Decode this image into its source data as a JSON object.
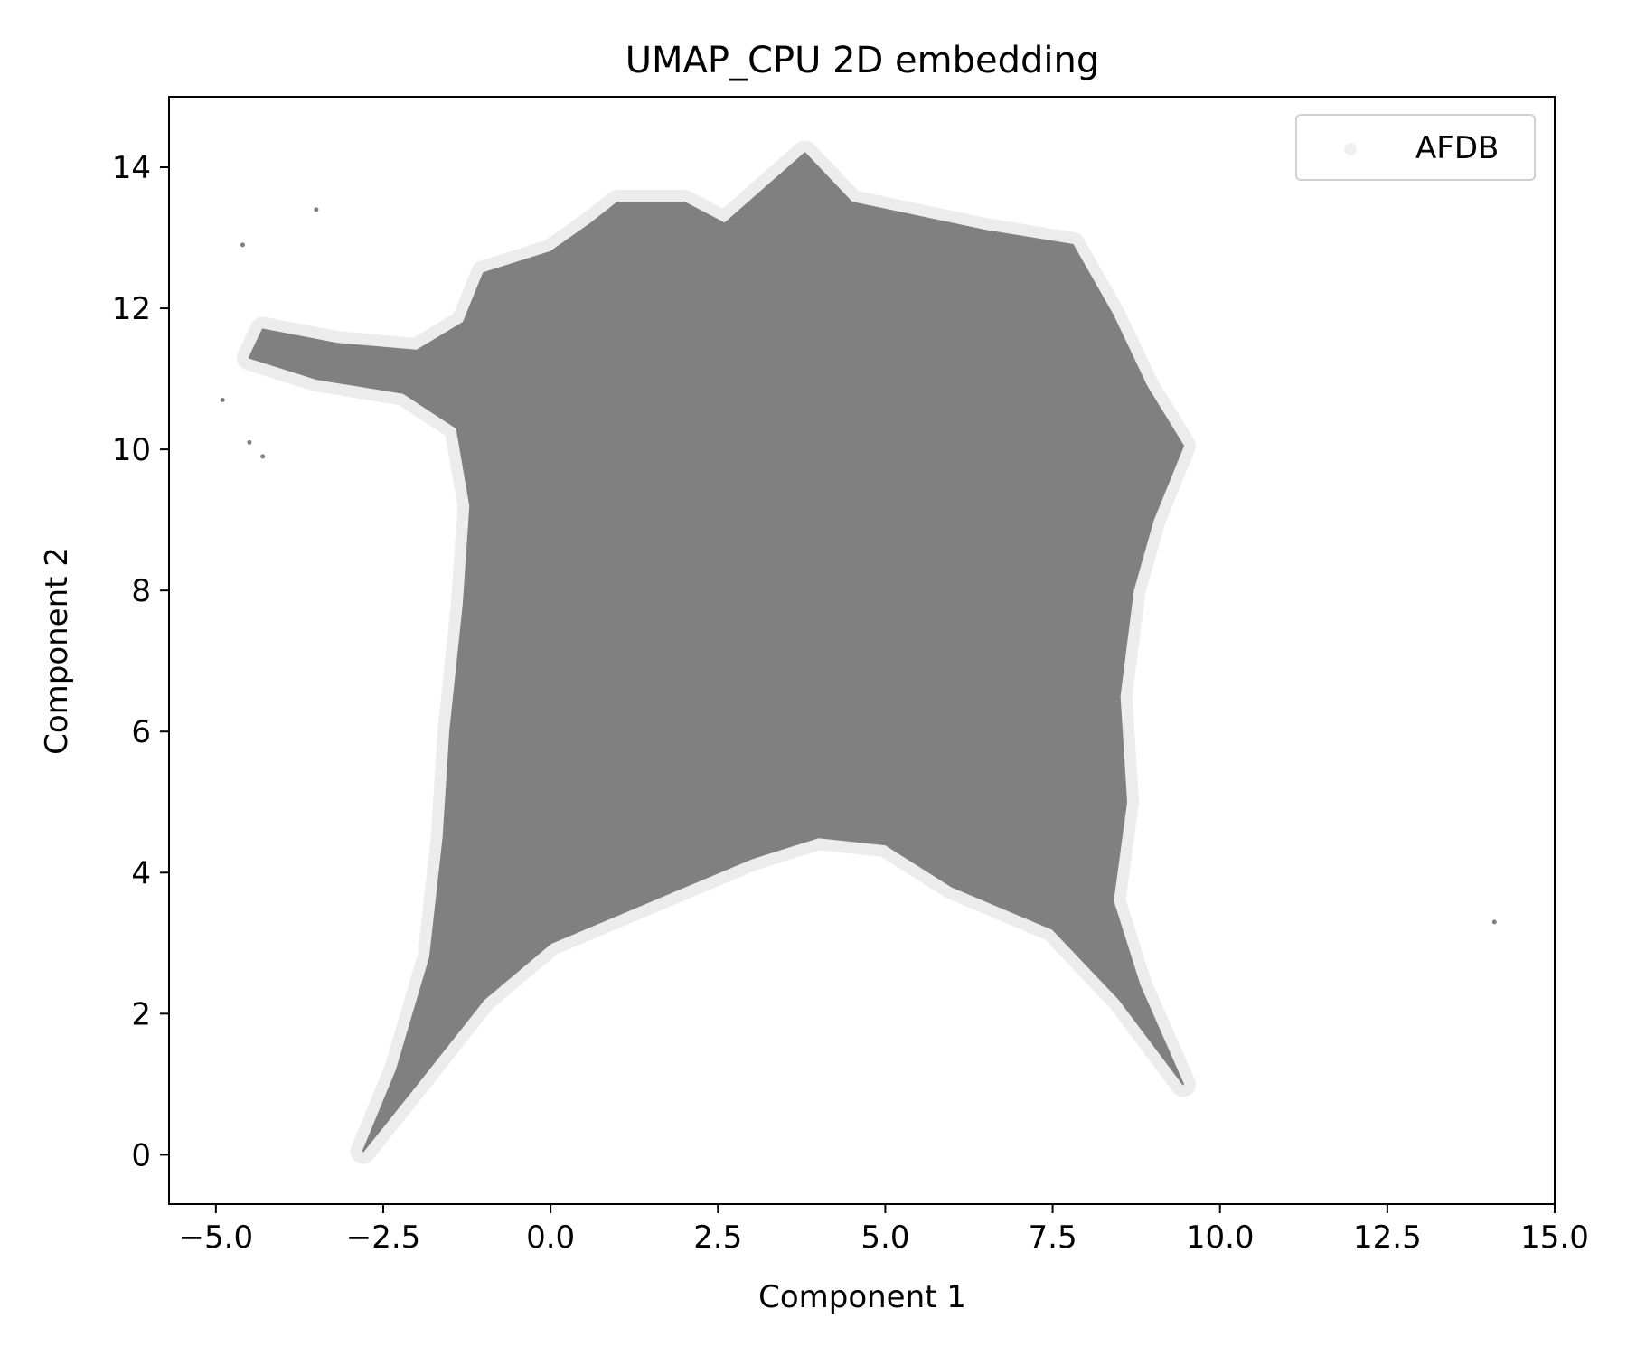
{
  "chart_data": {
    "type": "scatter",
    "title": "UMAP_CPU 2D embedding",
    "xlabel": "Component 1",
    "ylabel": "Component 2",
    "xlim": [
      -5.7,
      15.0
    ],
    "ylim": [
      -0.7,
      15.0
    ],
    "xticks": [
      -5.0,
      -2.5,
      0.0,
      2.5,
      5.0,
      7.5,
      10.0,
      12.5,
      15.0
    ],
    "xtick_labels": [
      "−5.0",
      "−2.5",
      "0.0",
      "2.5",
      "5.0",
      "7.5",
      "10.0",
      "12.5",
      "15.0"
    ],
    "yticks": [
      0,
      2,
      4,
      6,
      8,
      10,
      12,
      14
    ],
    "ytick_labels": [
      "0",
      "2",
      "4",
      "6",
      "8",
      "10",
      "12",
      "14"
    ],
    "grid": false,
    "legend_position": "top-right",
    "series": [
      {
        "name": "AFDB",
        "color": "#808080",
        "region_outline": [
          [
            -2.8,
            0.05
          ],
          [
            -2.3,
            1.2
          ],
          [
            -1.8,
            2.8
          ],
          [
            -1.6,
            4.5
          ],
          [
            -1.5,
            6.0
          ],
          [
            -1.3,
            7.8
          ],
          [
            -1.2,
            9.2
          ],
          [
            -1.4,
            10.3
          ],
          [
            -2.2,
            10.8
          ],
          [
            -3.5,
            11.0
          ],
          [
            -4.5,
            11.3
          ],
          [
            -4.3,
            11.7
          ],
          [
            -3.2,
            11.5
          ],
          [
            -2.0,
            11.4
          ],
          [
            -1.3,
            11.8
          ],
          [
            -1.0,
            12.5
          ],
          [
            0.0,
            12.8
          ],
          [
            0.6,
            13.2
          ],
          [
            1.0,
            13.5
          ],
          [
            2.0,
            13.5
          ],
          [
            2.6,
            13.2
          ],
          [
            3.2,
            13.7
          ],
          [
            3.8,
            14.2
          ],
          [
            4.5,
            13.5
          ],
          [
            5.5,
            13.3
          ],
          [
            6.5,
            13.1
          ],
          [
            7.8,
            12.9
          ],
          [
            8.4,
            11.9
          ],
          [
            8.9,
            10.9
          ],
          [
            9.45,
            10.05
          ],
          [
            9.0,
            9.0
          ],
          [
            8.7,
            8.0
          ],
          [
            8.5,
            6.5
          ],
          [
            8.6,
            5.0
          ],
          [
            8.4,
            3.6
          ],
          [
            8.8,
            2.4
          ],
          [
            9.45,
            1.0
          ],
          [
            8.5,
            2.2
          ],
          [
            7.5,
            3.2
          ],
          [
            6.0,
            3.8
          ],
          [
            5.0,
            4.4
          ],
          [
            4.0,
            4.5
          ],
          [
            3.0,
            4.2
          ],
          [
            2.0,
            3.8
          ],
          [
            1.0,
            3.4
          ],
          [
            0.0,
            3.0
          ],
          [
            -1.0,
            2.2
          ],
          [
            -2.0,
            1.0
          ]
        ],
        "outliers": [
          [
            14.1,
            3.3
          ],
          [
            -4.5,
            10.1
          ],
          [
            -4.3,
            9.9
          ],
          [
            -4.9,
            10.7
          ],
          [
            -4.6,
            12.9
          ],
          [
            -3.5,
            13.4
          ]
        ]
      }
    ]
  }
}
